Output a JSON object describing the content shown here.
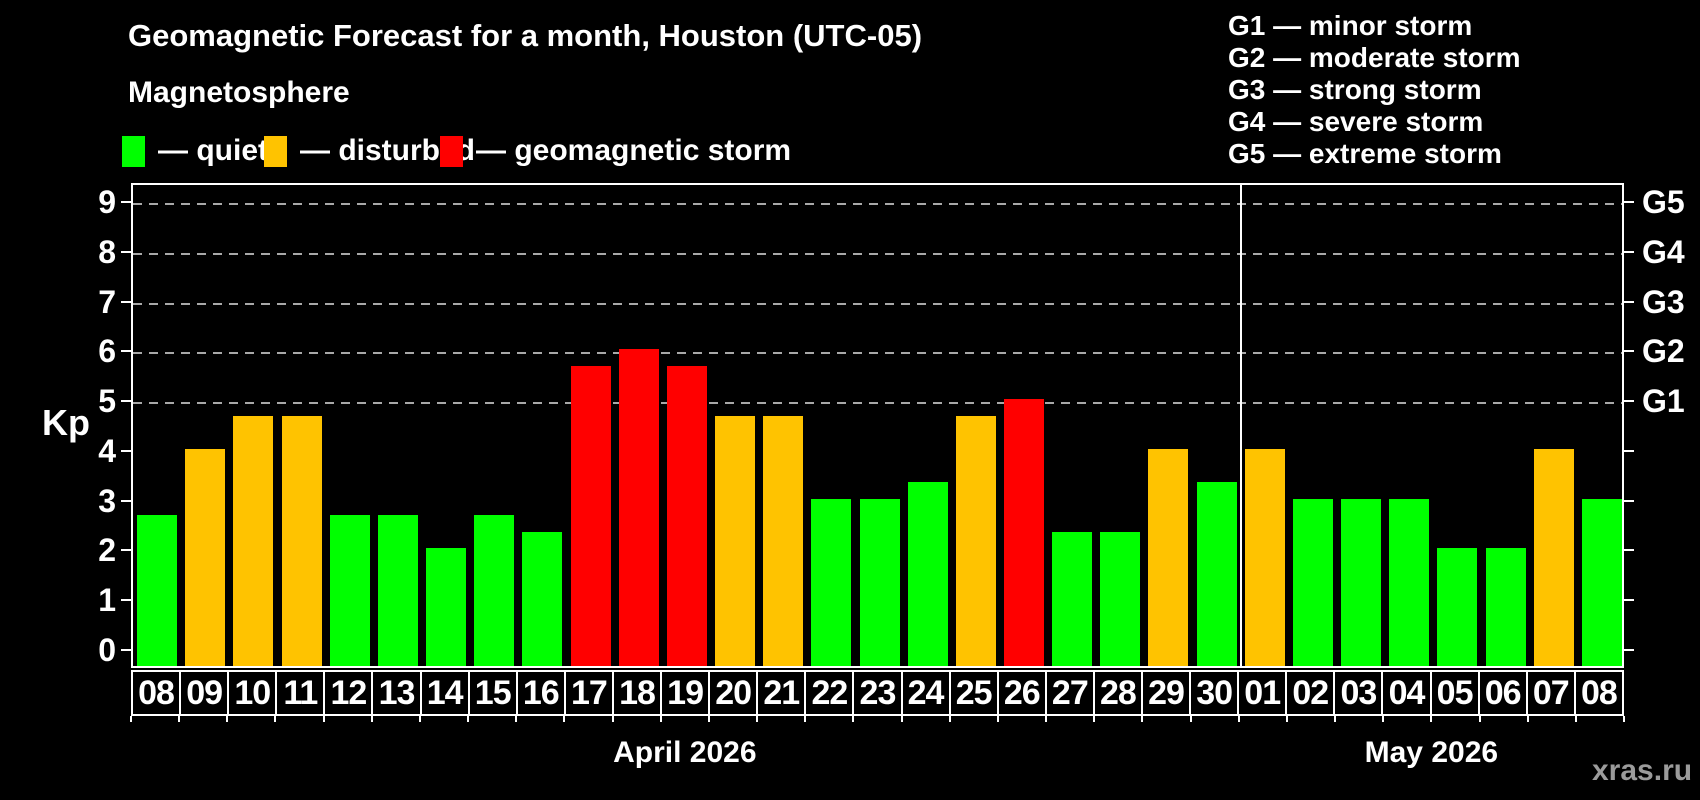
{
  "title": "Geomagnetic Forecast for a month, Houston (UTC-05)",
  "subtitle": "Magnetosphere",
  "legend": {
    "items": [
      {
        "key": "quiet",
        "label": "— quiet"
      },
      {
        "key": "disturbed",
        "label": "— disturbed"
      },
      {
        "key": "storm",
        "label": "— geomagnetic storm"
      }
    ]
  },
  "g_legend": {
    "items": [
      {
        "text": "G1 — minor storm"
      },
      {
        "text": "G2 — moderate storm"
      },
      {
        "text": "G3 — strong storm"
      },
      {
        "text": "G4 — severe storm"
      },
      {
        "text": "G5 — extreme storm"
      }
    ]
  },
  "colors": {
    "background": "#000000",
    "quiet": "#00ff00",
    "disturbed": "#ffc300",
    "storm": "#ff0000",
    "grid": "#a8a8a8",
    "axis": "#ffffff",
    "text": "#ffffff",
    "watermark": "#9b9b9b"
  },
  "y_axis": {
    "label": "Kp",
    "ticks": [
      0,
      1,
      2,
      3,
      4,
      5,
      6,
      7,
      8,
      9
    ]
  },
  "right_axis": {
    "labels": [
      {
        "text": "G1",
        "kp": 5
      },
      {
        "text": "G2",
        "kp": 6
      },
      {
        "text": "G3",
        "kp": 7
      },
      {
        "text": "G4",
        "kp": 8
      },
      {
        "text": "G5",
        "kp": 9
      }
    ]
  },
  "watermark": "xras.ru",
  "chart_data": {
    "type": "bar",
    "title": "Geomagnetic Forecast for a month, Houston (UTC-05)",
    "ylabel": "Kp",
    "ylim": [
      0,
      9
    ],
    "grid_on": true,
    "gridlines_at_kp": [
      5,
      6,
      7,
      8,
      9
    ],
    "legend_position": "top",
    "months": [
      {
        "label": "April 2026",
        "days": [
          {
            "day": "08",
            "kp": 2.67,
            "level": "quiet"
          },
          {
            "day": "09",
            "kp": 4.0,
            "level": "disturbed"
          },
          {
            "day": "10",
            "kp": 4.67,
            "level": "disturbed"
          },
          {
            "day": "11",
            "kp": 4.67,
            "level": "disturbed"
          },
          {
            "day": "12",
            "kp": 2.67,
            "level": "quiet"
          },
          {
            "day": "13",
            "kp": 2.67,
            "level": "quiet"
          },
          {
            "day": "14",
            "kp": 2.0,
            "level": "quiet"
          },
          {
            "day": "15",
            "kp": 2.67,
            "level": "quiet"
          },
          {
            "day": "16",
            "kp": 2.33,
            "level": "quiet"
          },
          {
            "day": "17",
            "kp": 5.67,
            "level": "storm"
          },
          {
            "day": "18",
            "kp": 6.0,
            "level": "storm"
          },
          {
            "day": "19",
            "kp": 5.67,
            "level": "storm"
          },
          {
            "day": "20",
            "kp": 4.67,
            "level": "disturbed"
          },
          {
            "day": "21",
            "kp": 4.67,
            "level": "disturbed"
          },
          {
            "day": "22",
            "kp": 3.0,
            "level": "quiet"
          },
          {
            "day": "23",
            "kp": 3.0,
            "level": "quiet"
          },
          {
            "day": "24",
            "kp": 3.33,
            "level": "quiet"
          },
          {
            "day": "25",
            "kp": 4.67,
            "level": "disturbed"
          },
          {
            "day": "26",
            "kp": 5.0,
            "level": "storm"
          },
          {
            "day": "27",
            "kp": 2.33,
            "level": "quiet"
          },
          {
            "day": "28",
            "kp": 2.33,
            "level": "quiet"
          },
          {
            "day": "29",
            "kp": 4.0,
            "level": "disturbed"
          },
          {
            "day": "30",
            "kp": 3.33,
            "level": "quiet"
          }
        ]
      },
      {
        "label": "May 2026",
        "days": [
          {
            "day": "01",
            "kp": 4.0,
            "level": "disturbed"
          },
          {
            "day": "02",
            "kp": 3.0,
            "level": "quiet"
          },
          {
            "day": "03",
            "kp": 3.0,
            "level": "quiet"
          },
          {
            "day": "04",
            "kp": 3.0,
            "level": "quiet"
          },
          {
            "day": "05",
            "kp": 2.0,
            "level": "quiet"
          },
          {
            "day": "06",
            "kp": 2.0,
            "level": "quiet"
          },
          {
            "day": "07",
            "kp": 4.0,
            "level": "disturbed"
          },
          {
            "day": "08",
            "kp": 3.0,
            "level": "quiet"
          }
        ]
      }
    ]
  }
}
